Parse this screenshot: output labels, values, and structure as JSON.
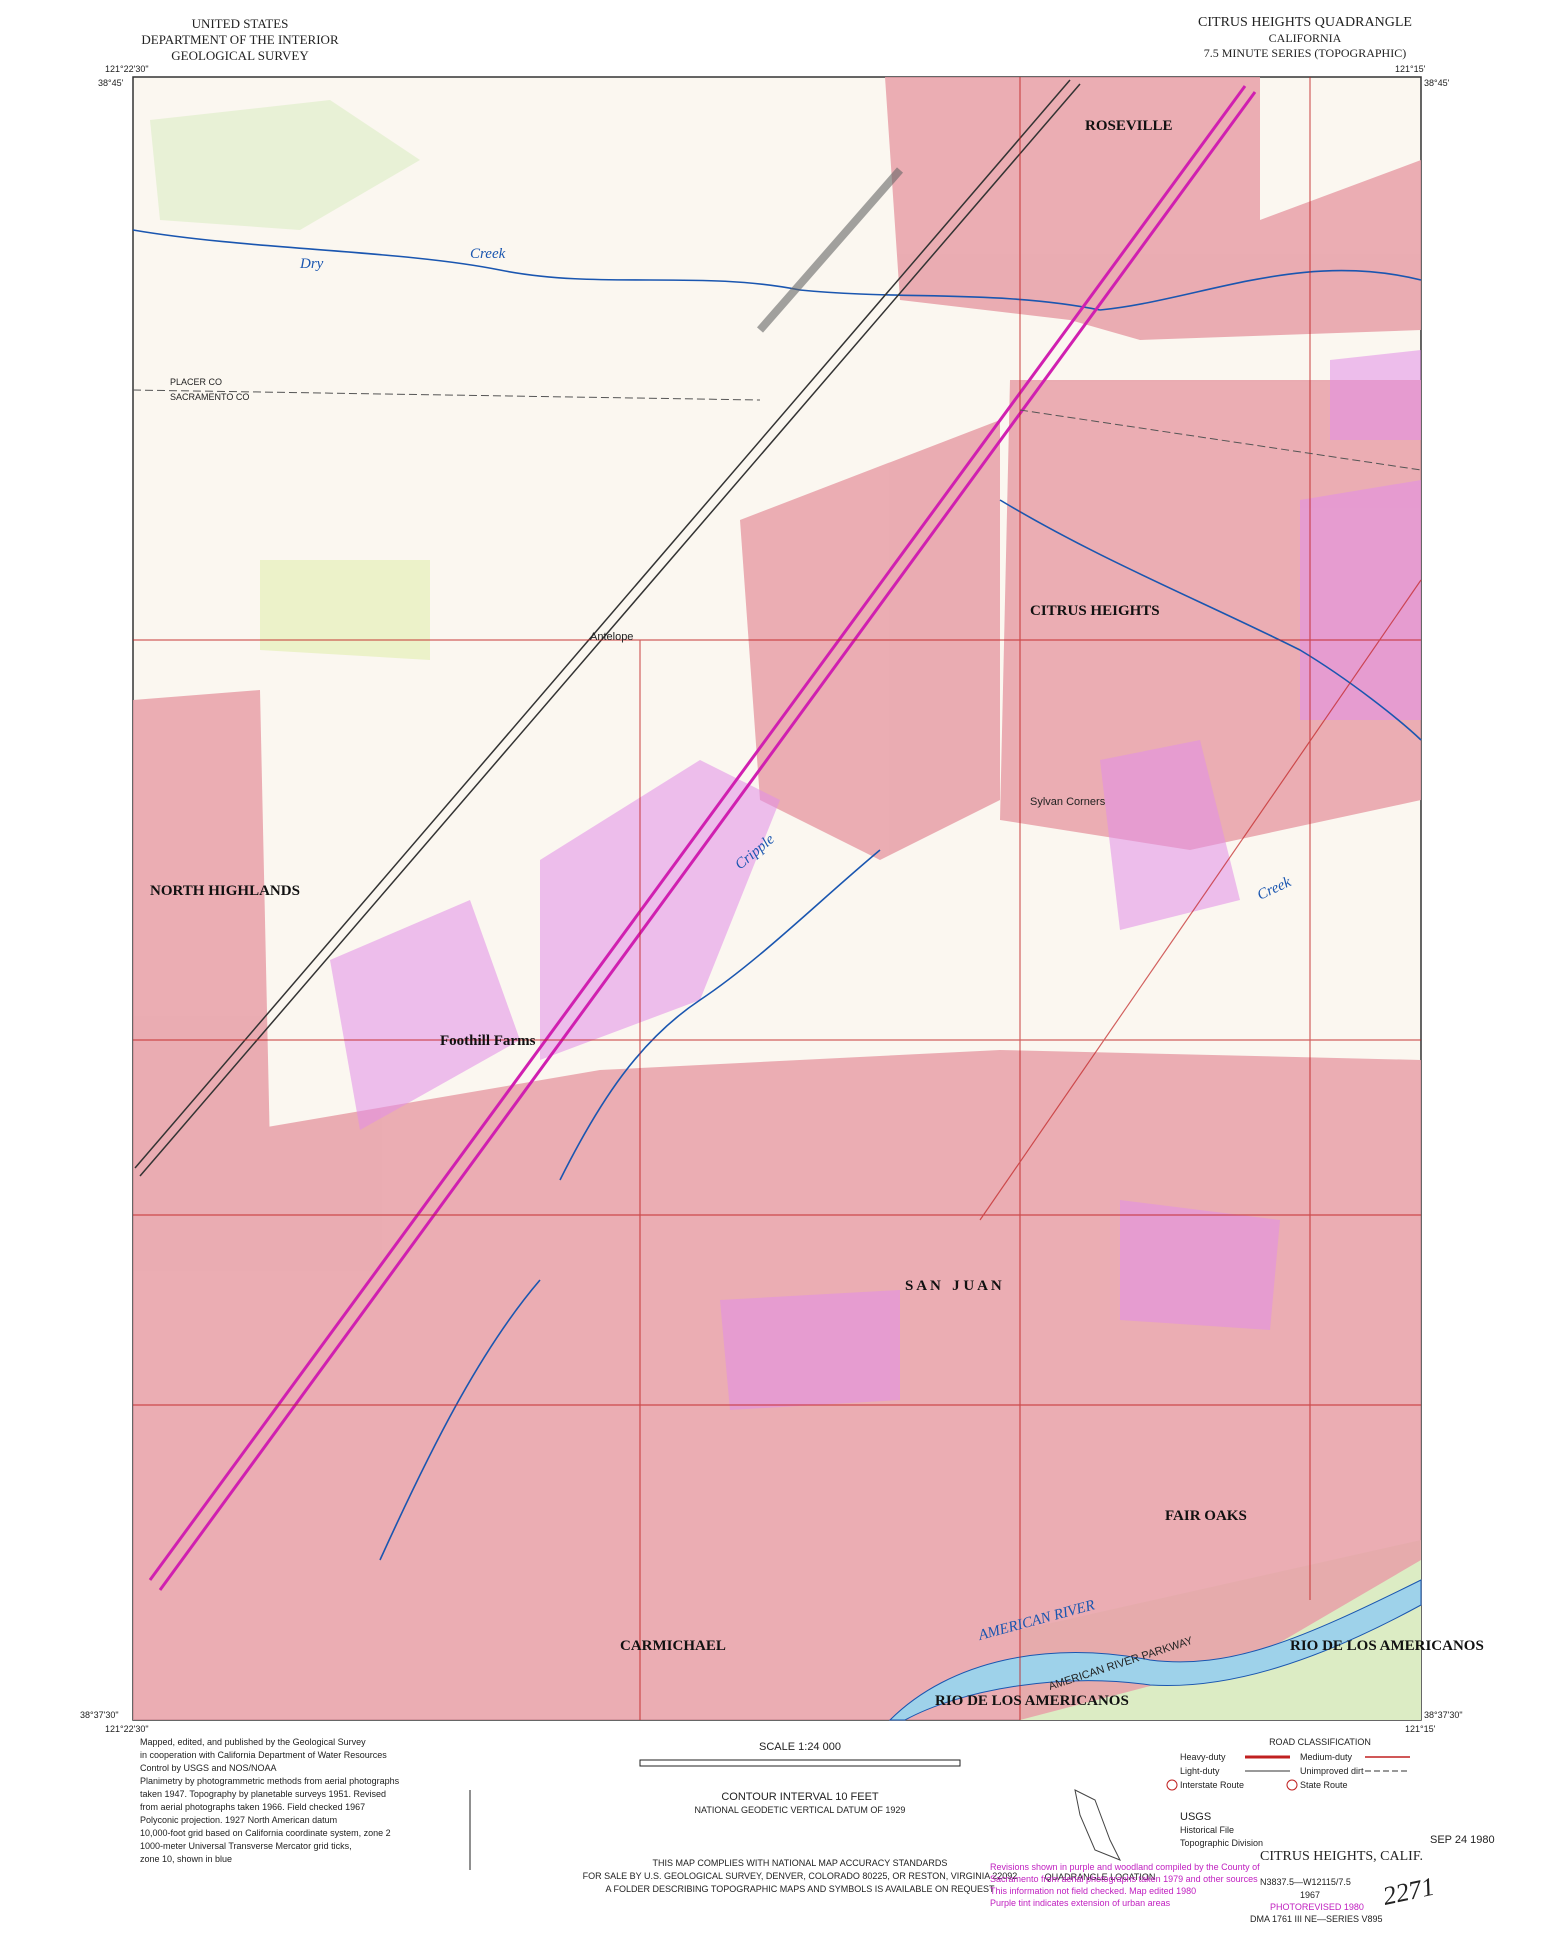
{
  "header": {
    "agency": [
      "UNITED STATES",
      "DEPARTMENT OF THE INTERIOR",
      "GEOLOGICAL SURVEY"
    ],
    "title": "CITRUS HEIGHTS QUADRANGLE",
    "state": "CALIFORNIA",
    "series": "7.5 MINUTE SERIES (TOPOGRAPHIC)"
  },
  "corners": {
    "top_left_lon": "121°22'30\"",
    "top_left_lat": "38°45'",
    "top_right_lon": "121°15'",
    "top_right_lat": "38°45'",
    "bottom_left_lat": "38°37'30\"",
    "bottom_left_lon": "121°22'30\"",
    "bottom_right_lat": "38°37'30\"",
    "bottom_right_lon": "121°15'"
  },
  "places": [
    "ROSEVILLE",
    "CITRUS HEIGHTS",
    "NORTH HIGHLANDS",
    "Foothill Farms",
    "S A N   J U A N",
    "FAIR OAKS",
    "CARMICHAEL",
    "RIO DE LOS AMERICANOS",
    "AMERICAN RIVER",
    "Dry",
    "Creek",
    "Antelope",
    "Sylvan Corners",
    "PLACER CO",
    "SACRAMENTO CO",
    "AMERICAN RIVER PARKWAY",
    "Cripple",
    "Creek",
    "RIO DE LOS AMERICANOS"
  ],
  "footer": {
    "credits": [
      "Mapped, edited, and published by the Geological Survey",
      "in cooperation with California Department of Water Resources",
      "Control by USGS and NOS/NOAA",
      "Planimetry by photogrammetric methods from aerial photographs",
      "taken 1947. Topography by planetable surveys 1951. Revised",
      "from aerial photographs taken 1966. Field checked 1967",
      "Polyconic projection. 1927 North American datum",
      "10,000-foot grid based on California coordinate system, zone 2",
      "1000-meter Universal Transverse Mercator grid ticks,",
      "zone 10, shown in blue"
    ],
    "scale": "SCALE 1:24 000",
    "contour": "CONTOUR INTERVAL 10 FEET",
    "datum": "NATIONAL GEODETIC VERTICAL DATUM OF 1929",
    "accuracy": [
      "THIS MAP COMPLIES WITH NATIONAL MAP ACCURACY STANDARDS",
      "FOR SALE BY U.S. GEOLOGICAL SURVEY, DENVER, COLORADO 80225, OR RESTON, VIRGINIA 22092",
      "A FOLDER DESCRIBING TOPOGRAPHIC MAPS AND SYMBOLS IS AVAILABLE ON REQUEST"
    ],
    "road_classification": "ROAD CLASSIFICATION",
    "roads": [
      "Heavy-duty",
      "Medium-duty",
      "Light-duty",
      "Unimproved dirt",
      "Interstate Route",
      "State Route"
    ],
    "usgs": [
      "USGS",
      "Historical File",
      "Topographic Division"
    ],
    "location": "QUADRANGLE LOCATION",
    "purple_note": [
      "Revisions shown in purple and woodland compiled by the County of",
      "Sacramento from aerial photographs taken 1979 and other sources",
      "This information not field checked. Map edited 1980",
      "Purple tint indicates extension of urban areas"
    ],
    "name": "CITRUS HEIGHTS, CALIF.",
    "ref": "N3837.5—W12115/7.5",
    "year": "1967",
    "photorevised": "PHOTOREVISED 1980",
    "dma": "DMA 1761 III NE—SERIES V895",
    "stamp": "SEP 24 1980",
    "handwritten": "2271"
  }
}
